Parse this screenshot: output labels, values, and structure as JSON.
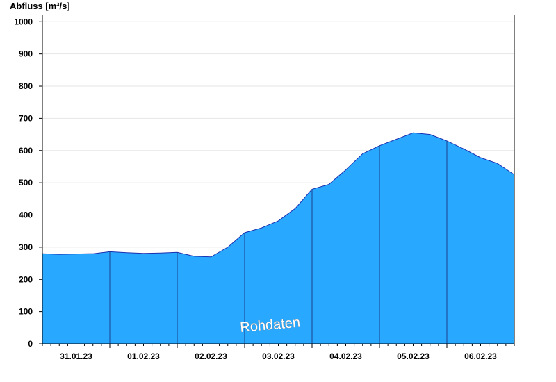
{
  "chart_data": {
    "type": "area",
    "ylabel": "Abfluss [m³/s]",
    "watermark": "Rohdaten",
    "ylim": [
      0,
      1020
    ],
    "xlim": [
      "2023-01-30T12:00",
      "2023-02-06T12:00"
    ],
    "y_ticks": [
      "0",
      "100",
      "200",
      "300",
      "400",
      "500",
      "600",
      "700",
      "800",
      "900",
      "1000"
    ],
    "x_tick_labels": [
      "31.01.23",
      "01.02.23",
      "02.02.23",
      "03.02.23",
      "04.02.23",
      "05.02.23",
      "06.02.23"
    ],
    "x_tick_dates": [
      "2023-01-31T00:00",
      "2023-02-01T00:00",
      "2023-02-02T00:00",
      "2023-02-03T00:00",
      "2023-02-04T00:00",
      "2023-02-05T00:00",
      "2023-02-06T00:00"
    ],
    "day_boundaries": [
      "2023-01-31T12:00",
      "2023-02-01T12:00",
      "2023-02-02T12:00",
      "2023-02-03T12:00",
      "2023-02-04T12:00",
      "2023-02-05T12:00"
    ],
    "grid": true,
    "fill_color": "#29a8ff",
    "line_color": "#1a2fb0",
    "series": [
      {
        "x": [
          "2023-01-30T12:00",
          "2023-01-30T18:00",
          "2023-01-31T00:00",
          "2023-01-31T06:00",
          "2023-01-31T12:00",
          "2023-01-31T18:00",
          "2023-02-01T00:00",
          "2023-02-01T06:00",
          "2023-02-01T12:00",
          "2023-02-01T18:00",
          "2023-02-02T00:00",
          "2023-02-02T06:00",
          "2023-02-02T12:00",
          "2023-02-02T18:00",
          "2023-02-03T00:00",
          "2023-02-03T06:00",
          "2023-02-03T12:00",
          "2023-02-03T18:00",
          "2023-02-04T00:00",
          "2023-02-04T06:00",
          "2023-02-04T12:00",
          "2023-02-04T18:00",
          "2023-02-05T00:00",
          "2023-02-05T06:00",
          "2023-02-05T12:00",
          "2023-02-05T18:00",
          "2023-02-06T00:00",
          "2023-02-06T06:00",
          "2023-02-06T12:00"
        ],
        "values": [
          280,
          278,
          279,
          280,
          286,
          283,
          281,
          282,
          284,
          272,
          270,
          300,
          345,
          360,
          382,
          420,
          480,
          495,
          540,
          590,
          615,
          635,
          655,
          650,
          630,
          605,
          578,
          560,
          525
        ]
      }
    ]
  }
}
